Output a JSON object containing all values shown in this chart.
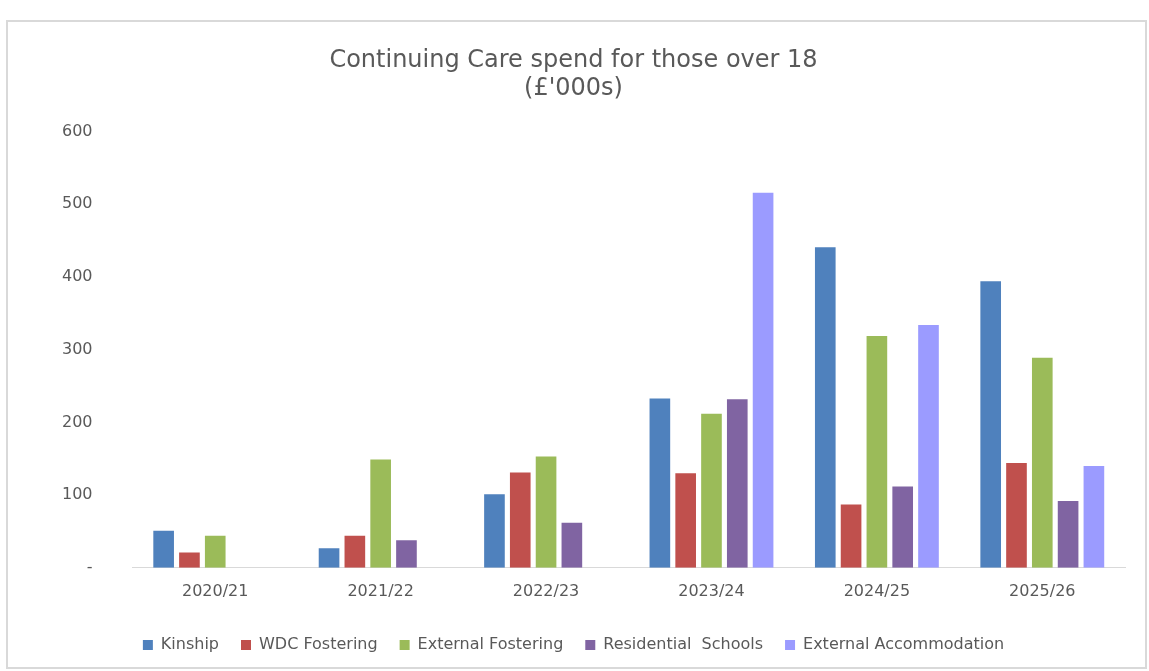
{
  "chart_data": {
    "type": "bar",
    "title": "Continuing Care spend for those over 18\n(£'000s)",
    "categories": [
      "2020/21",
      "2021/22",
      "2022/23",
      "2023/24",
      "2024/25",
      "2025/26"
    ],
    "series": [
      {
        "name": "Kinship",
        "color": "#4f81bd",
        "values": [
          51,
          27,
          101,
          233,
          441,
          394
        ]
      },
      {
        "name": "WDC Fostering",
        "color": "#c0504d",
        "values": [
          21,
          44,
          131,
          130,
          87,
          144
        ]
      },
      {
        "name": "External Fostering",
        "color": "#9bbb59",
        "values": [
          44,
          149,
          153,
          212,
          319,
          289
        ]
      },
      {
        "name": "Residential  Schools",
        "color": "#8064a2",
        "values": [
          null,
          38,
          62,
          232,
          112,
          92
        ]
      },
      {
        "name": "External Accommodation",
        "color": "#9b9bff",
        "values": [
          null,
          null,
          null,
          516,
          334,
          140
        ]
      }
    ],
    "ylim": [
      0,
      600
    ],
    "yticks": [
      {
        "value": 0,
        "label": "-"
      },
      100,
      200,
      300,
      400,
      500,
      600
    ],
    "grid": false,
    "legend": "bottom"
  }
}
